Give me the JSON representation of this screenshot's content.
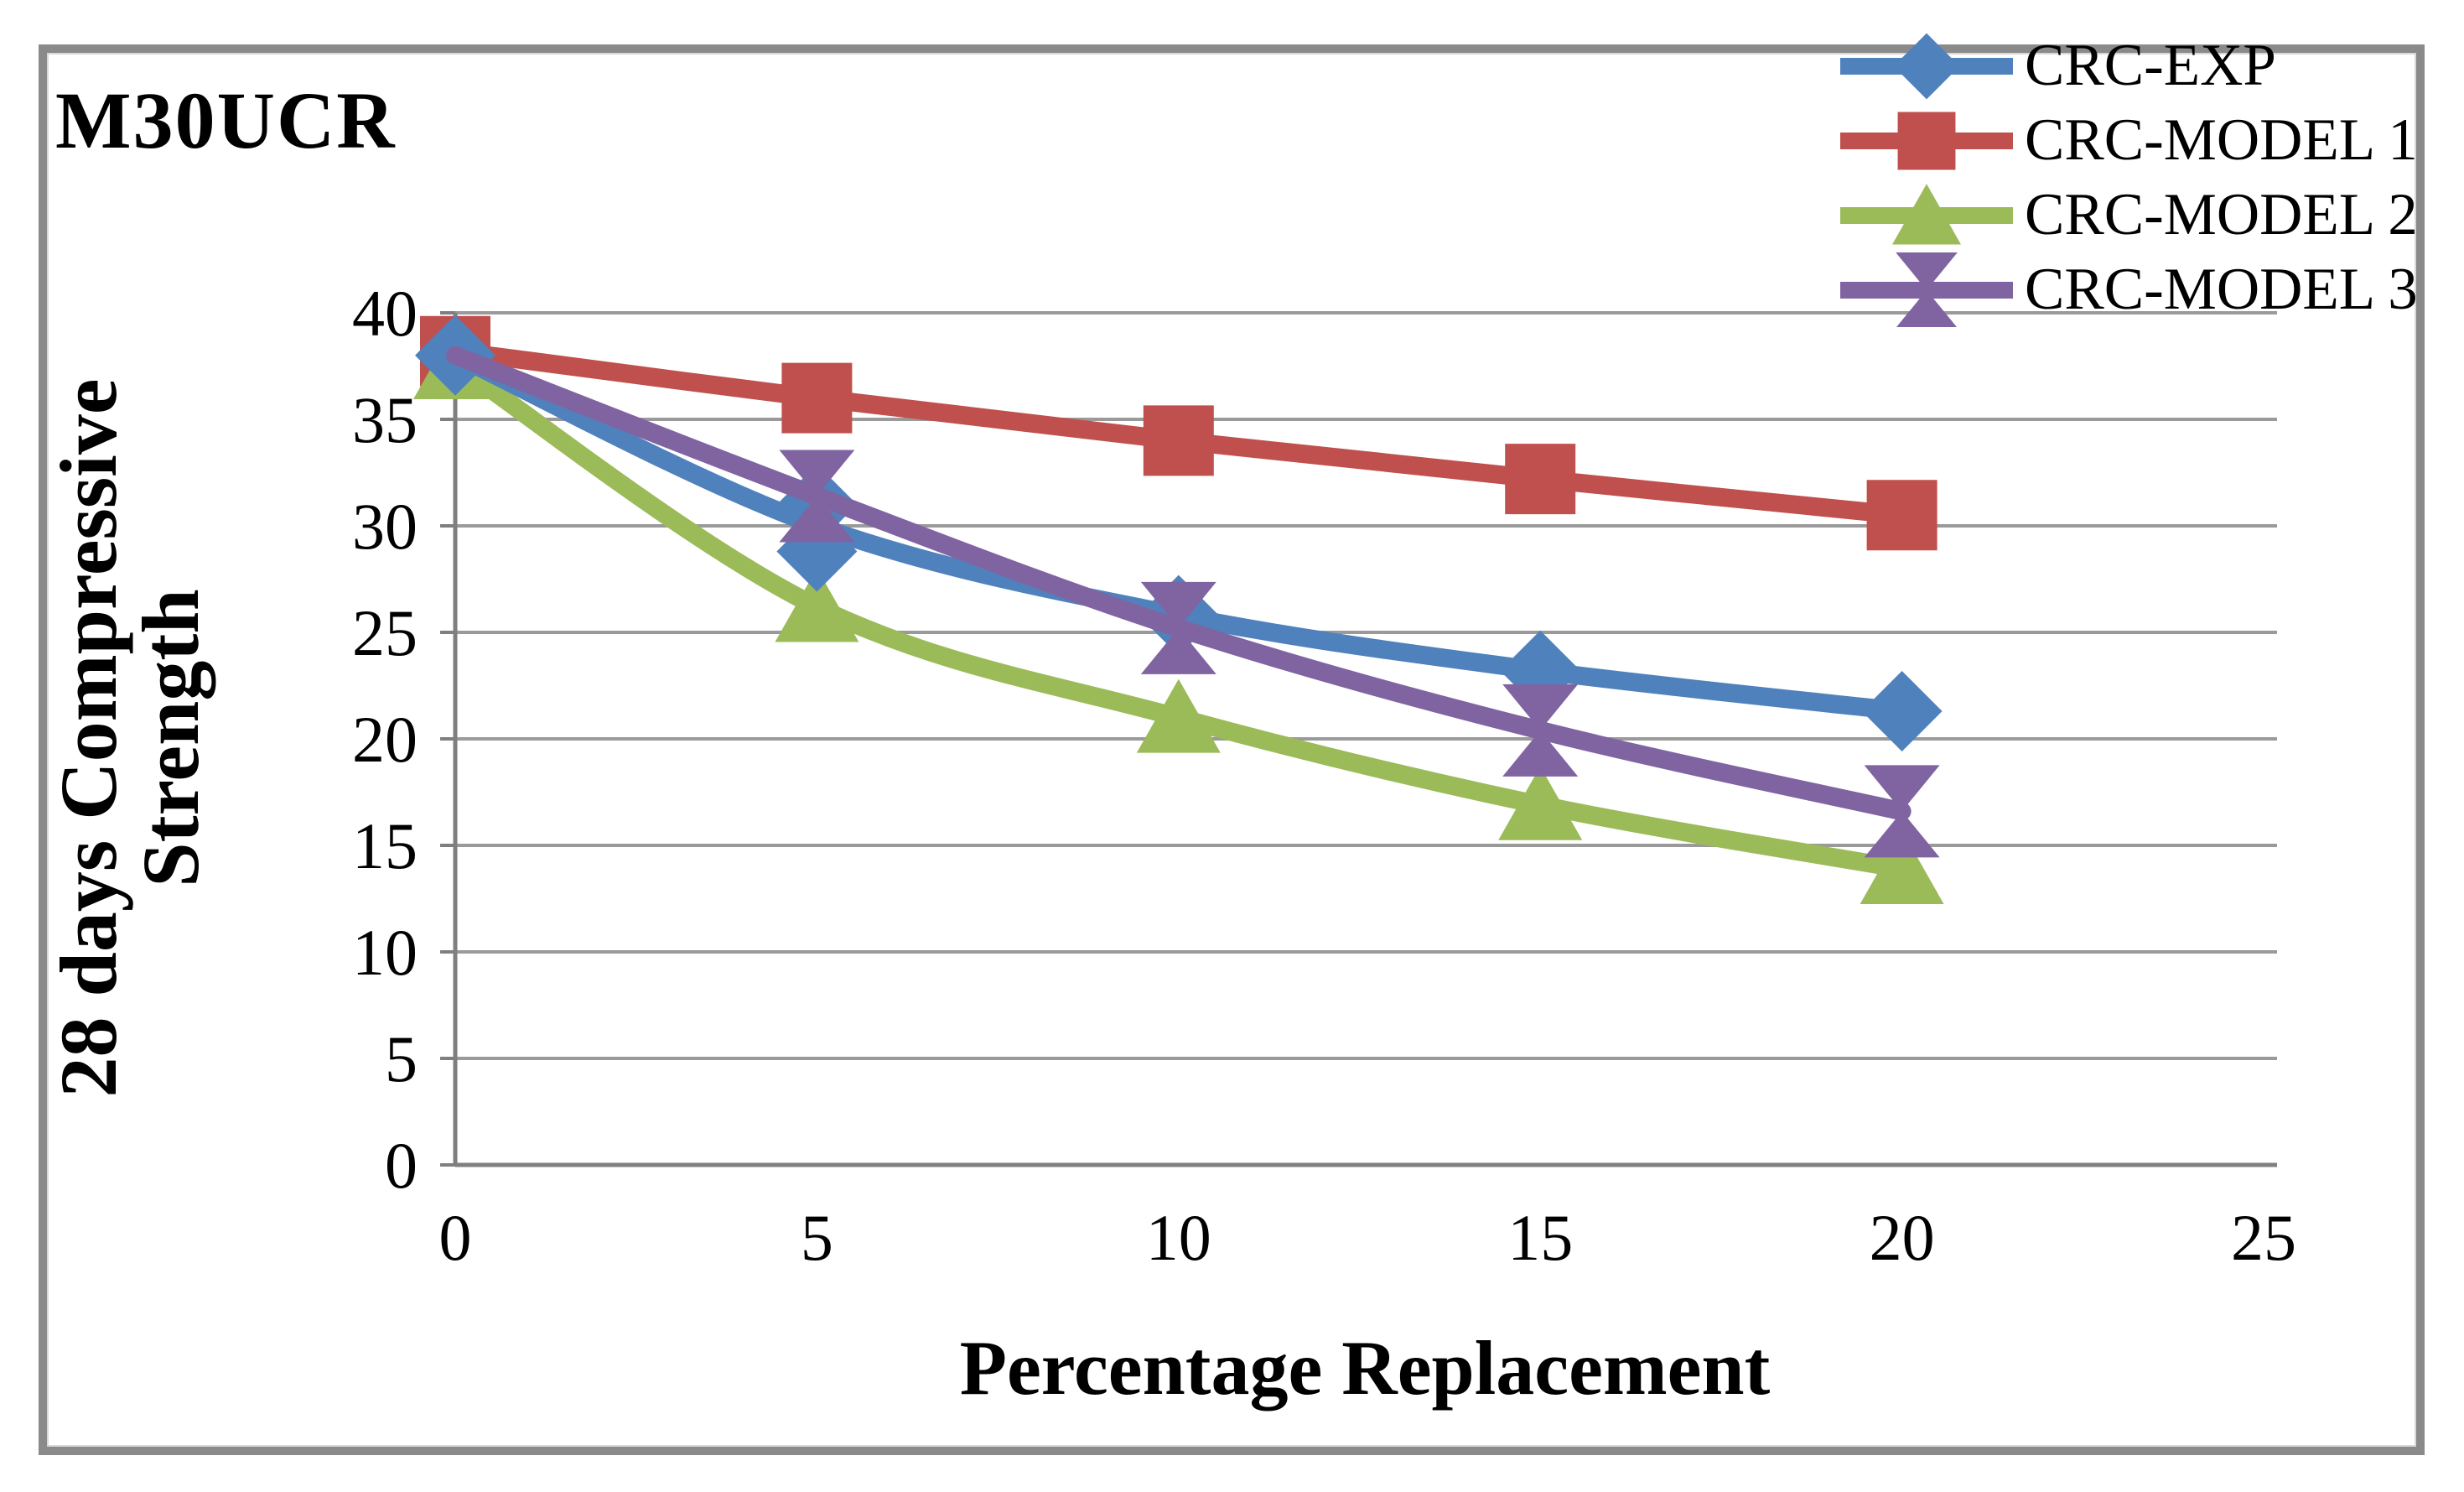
{
  "chart_data": {
    "type": "line",
    "title": "M30UCR",
    "xlabel": "Percentage Replacement",
    "ylabel_lines": [
      "28 days Compressive",
      "Strength"
    ],
    "x": [
      0,
      5,
      10,
      15,
      20
    ],
    "xlim": [
      0,
      25
    ],
    "ylim": [
      0,
      40
    ],
    "x_ticks": [
      0,
      5,
      10,
      15,
      20,
      25
    ],
    "y_ticks": [
      0,
      5,
      10,
      15,
      20,
      25,
      30,
      35,
      40
    ],
    "grid": true,
    "legend_position": "top-right",
    "series": [
      {
        "name": "CRC-EXP",
        "color": "#4F81BD",
        "marker": "diamond",
        "values": [
          38,
          30,
          25.8,
          23.2,
          21.3
        ],
        "marker_y_overrides": {
          "1": [
            31,
            28.8
          ]
        }
      },
      {
        "name": "CRC-MODEL 1",
        "color": "#C0504D",
        "marker": "square",
        "values": [
          38.2,
          36,
          34,
          32.2,
          30.5
        ]
      },
      {
        "name": "CRC-MODEL 2",
        "color": "#9BBB59",
        "marker": "triangle",
        "values": [
          37.6,
          26.2,
          21,
          16.9,
          13.9
        ]
      },
      {
        "name": "CRC-MODEL 3",
        "color": "#8064A2",
        "marker": "bowtie",
        "values": [
          38,
          31.4,
          25.2,
          20.4,
          16.6
        ],
        "marker_y_overrides": {
          "0": []
        }
      }
    ],
    "draw_order": [
      1,
      2,
      0,
      3
    ],
    "axis_color": "#7F7F7F",
    "grid_color": "#9A9A9A",
    "border_color": "#8A8A8A",
    "text_color": "#000000"
  }
}
